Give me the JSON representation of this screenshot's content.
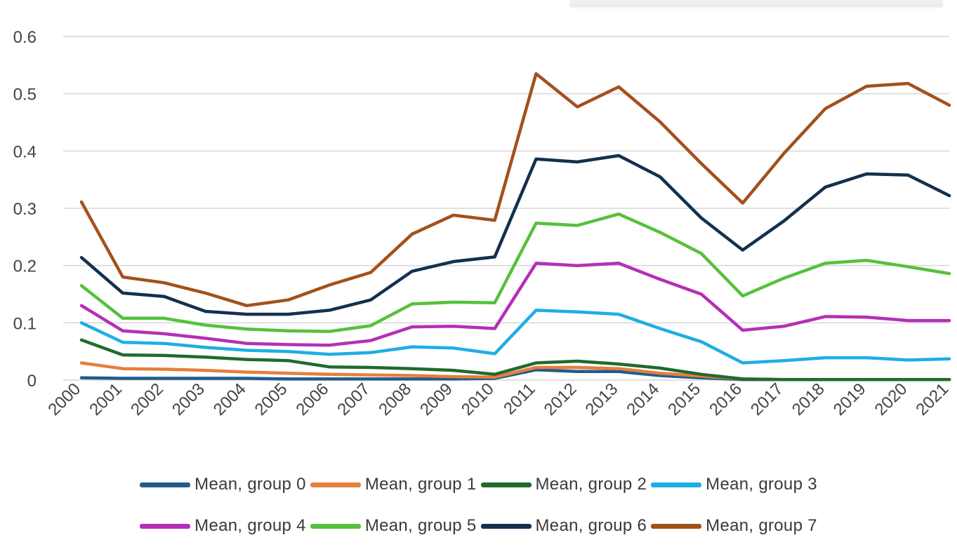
{
  "chart_data": {
    "type": "line",
    "title": "",
    "xlabel": "",
    "ylabel": "",
    "ylim": [
      0,
      0.6
    ],
    "yticks": [
      "0",
      "0.1",
      "0.2",
      "0.3",
      "0.4",
      "0.5",
      "0.6"
    ],
    "grid": true,
    "legend_position": "bottom",
    "x": [
      "2000",
      "2001",
      "2002",
      "2003",
      "2004",
      "2005",
      "2006",
      "2007",
      "2008",
      "2009",
      "2010",
      "2011",
      "2012",
      "2013",
      "2014",
      "2015",
      "2016",
      "2017",
      "2018",
      "2019",
      "2020",
      "2021"
    ],
    "series": [
      {
        "name": "Mean, group 0",
        "color": "#1f5c8b",
        "values": [
          0.004,
          0.003,
          0.003,
          0.003,
          0.003,
          0.002,
          0.002,
          0.002,
          0.002,
          0.002,
          0.003,
          0.018,
          0.015,
          0.015,
          0.008,
          0.004,
          0.001,
          0.001,
          0.001,
          0.001,
          0.001,
          0.001
        ]
      },
      {
        "name": "Mean, group 1",
        "color": "#e67e3c",
        "values": [
          0.03,
          0.02,
          0.019,
          0.017,
          0.014,
          0.012,
          0.01,
          0.009,
          0.008,
          0.006,
          0.005,
          0.022,
          0.022,
          0.02,
          0.012,
          0.007,
          0.002,
          0.001,
          0.001,
          0.001,
          0.001,
          0.001
        ]
      },
      {
        "name": "Mean, group 2",
        "color": "#1f6b2e",
        "values": [
          0.07,
          0.044,
          0.043,
          0.04,
          0.036,
          0.034,
          0.023,
          0.022,
          0.02,
          0.017,
          0.01,
          0.03,
          0.033,
          0.028,
          0.021,
          0.01,
          0.002,
          0.001,
          0.001,
          0.001,
          0.001,
          0.001
        ]
      },
      {
        "name": "Mean, group 3",
        "color": "#1eaee4",
        "values": [
          0.1,
          0.066,
          0.064,
          0.057,
          0.052,
          0.05,
          0.045,
          0.048,
          0.058,
          0.056,
          0.046,
          0.122,
          0.119,
          0.115,
          0.09,
          0.067,
          0.03,
          0.034,
          0.039,
          0.039,
          0.035,
          0.037
        ]
      },
      {
        "name": "Mean, group 4",
        "color": "#b52fb6",
        "values": [
          0.13,
          0.086,
          0.081,
          0.073,
          0.064,
          0.062,
          0.061,
          0.069,
          0.093,
          0.094,
          0.09,
          0.204,
          0.2,
          0.204,
          0.176,
          0.15,
          0.087,
          0.094,
          0.111,
          0.11,
          0.104,
          0.104
        ]
      },
      {
        "name": "Mean, group 5",
        "color": "#56c13c",
        "values": [
          0.165,
          0.108,
          0.108,
          0.096,
          0.089,
          0.086,
          0.085,
          0.095,
          0.133,
          0.136,
          0.135,
          0.274,
          0.27,
          0.29,
          0.258,
          0.221,
          0.147,
          0.178,
          0.204,
          0.209,
          0.198,
          0.186
        ]
      },
      {
        "name": "Mean, group 6",
        "color": "#13304f",
        "values": [
          0.214,
          0.152,
          0.146,
          0.12,
          0.115,
          0.115,
          0.122,
          0.14,
          0.19,
          0.207,
          0.215,
          0.386,
          0.381,
          0.392,
          0.355,
          0.283,
          0.227,
          0.278,
          0.337,
          0.36,
          0.358,
          0.322
        ]
      },
      {
        "name": "Mean, group 7",
        "color": "#a4501d",
        "values": [
          0.311,
          0.18,
          0.17,
          0.152,
          0.13,
          0.14,
          0.166,
          0.188,
          0.255,
          0.288,
          0.279,
          0.535,
          0.477,
          0.512,
          0.451,
          0.378,
          0.309,
          0.396,
          0.474,
          0.513,
          0.518,
          0.48
        ]
      }
    ]
  }
}
